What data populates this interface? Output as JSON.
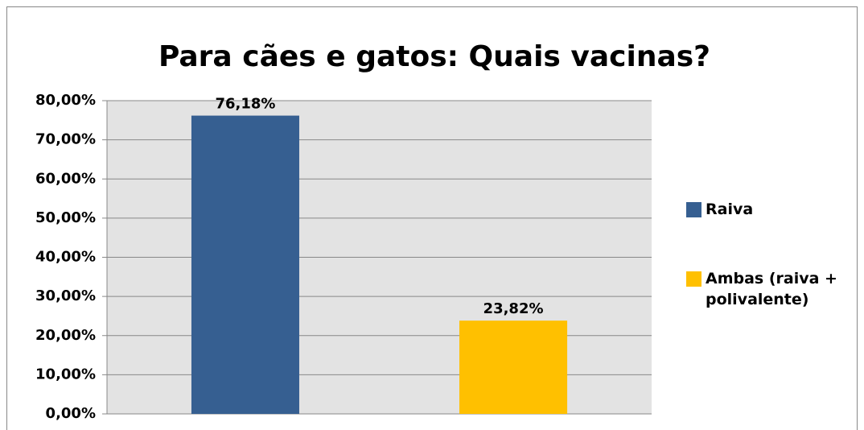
{
  "chart_data": {
    "type": "bar",
    "title": "Para cães e gatos: Quais vacinas?",
    "categories": [
      null
    ],
    "series": [
      {
        "name": "Raiva",
        "color": "#365f91",
        "values": [
          76.18
        ],
        "value_labels": [
          "76,18%"
        ]
      },
      {
        "name": "Ambas (raiva + polivalente)",
        "color": "#ffc000",
        "values": [
          23.82
        ],
        "value_labels": [
          "23,82%"
        ]
      }
    ],
    "ylim": [
      0,
      80
    ],
    "yticks": [
      {
        "value": 0,
        "label": "0,00%"
      },
      {
        "value": 10,
        "label": "10,00%"
      },
      {
        "value": 20,
        "label": "20,00%"
      },
      {
        "value": 30,
        "label": "30,00%"
      },
      {
        "value": 40,
        "label": "40,00%"
      },
      {
        "value": 50,
        "label": "50,00%"
      },
      {
        "value": 60,
        "label": "60,00%"
      },
      {
        "value": 70,
        "label": "70,00%"
      },
      {
        "value": 80,
        "label": "80,00%"
      }
    ],
    "grid": true,
    "legend": "right"
  }
}
